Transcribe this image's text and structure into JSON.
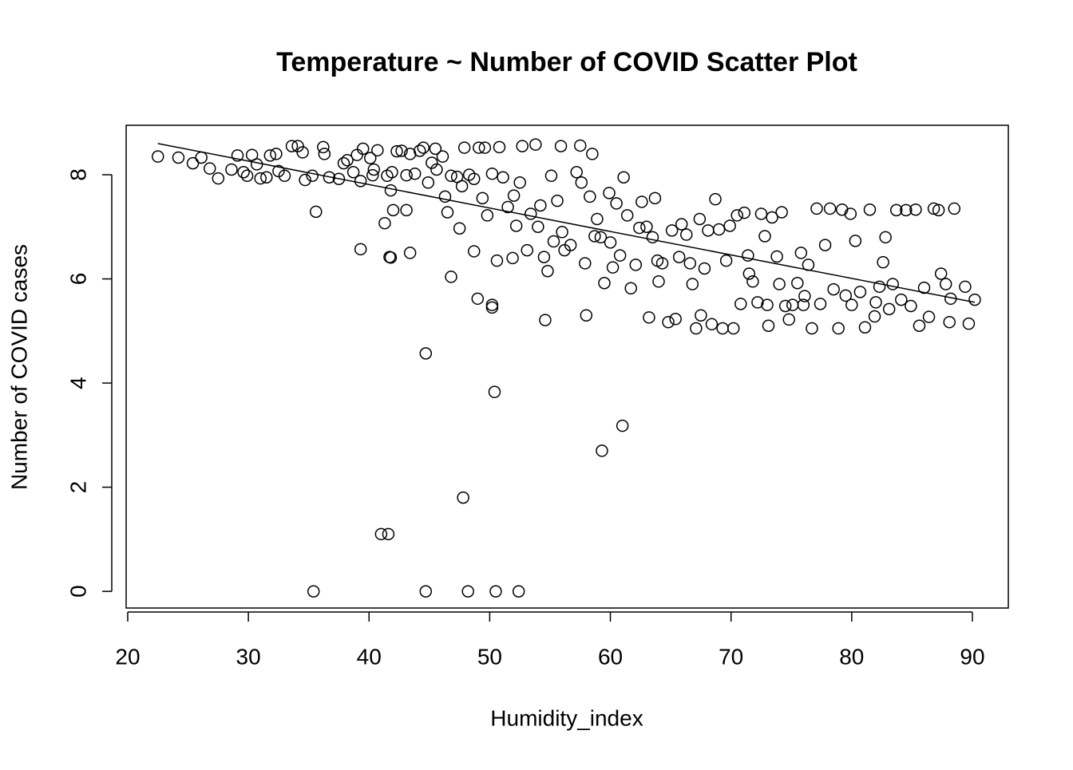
{
  "chart_data": {
    "type": "scatter",
    "title": "Temperature ~ Number of COVID Scatter Plot",
    "x_label": "Humidity_index",
    "y_label": "Number of COVID cases",
    "xlim": [
      19.87,
      92.98
    ],
    "ylim": [
      -0.32,
      8.95
    ],
    "xticks": [
      20,
      30,
      40,
      50,
      60,
      70,
      80,
      90
    ],
    "yticks": [
      0,
      2,
      4,
      6,
      8
    ],
    "color": "#000000",
    "trend_line": {
      "x": [
        22.5,
        90.2
      ],
      "y": [
        8.6,
        5.55
      ]
    },
    "x": [
      35.4,
      44.7,
      48.2,
      50.5,
      52.4,
      41,
      41.6,
      47.8,
      59.3,
      61,
      50.4,
      44.7,
      54.6,
      50.2,
      50.2,
      49,
      46.8,
      48.7,
      39.3,
      43.4,
      41.8,
      41.7,
      35.6,
      42,
      43.1,
      41.3,
      41.8,
      22.5,
      24.2,
      25.4,
      26.1,
      26.8,
      27.5,
      28.6,
      29.1,
      29.6,
      29.9,
      30.3,
      30.7,
      31,
      31.5,
      31.8,
      32.3,
      32.5,
      33,
      33.6,
      34.1,
      34.5,
      34.7,
      35.3,
      36.2,
      36.3,
      36.7,
      37.5,
      37.9,
      38.2,
      38.7,
      39,
      39.3,
      39.5,
      40.1,
      40.3,
      40.4,
      40.7,
      41.5,
      41.9,
      42.3,
      42.7,
      43.1,
      43.4,
      43.8,
      44.2,
      44.5,
      44.9,
      45.2,
      45.5,
      45.6,
      46.1,
      46.3,
      46.5,
      46.8,
      47.3,
      47.5,
      47.7,
      47.9,
      48.3,
      48.7,
      49.1,
      49.4,
      49.6,
      49.8,
      50.2,
      50.6,
      50.8,
      51.1,
      51.5,
      51.9,
      52.2,
      52.5,
      52.7,
      53.1,
      53.4,
      53.8,
      54.2,
      54.5,
      54.8,
      55.1,
      55.3,
      55.6,
      55.9,
      56.2,
      56.7,
      57.2,
      57.5,
      57.6,
      57.9,
      58,
      58.3,
      58.5,
      58.7,
      58.9,
      59.2,
      59.5,
      59.9,
      60.2,
      60.5,
      60.8,
      61.1,
      61.4,
      61.7,
      62.1,
      62.4,
      62.6,
      63,
      63.2,
      63.5,
      63.7,
      63.9,
      64.3,
      64.8,
      65.1,
      65.4,
      65.7,
      65.9,
      66.3,
      66.6,
      66.8,
      67.1,
      67.4,
      67.8,
      68.1,
      68.4,
      68.7,
      69,
      69.3,
      69.6,
      69.9,
      70.2,
      70.5,
      70.8,
      71.1,
      71.4,
      71.8,
      72.2,
      72.5,
      72.8,
      73.1,
      73.4,
      73.8,
      74.2,
      74.5,
      74.8,
      75.1,
      75.5,
      75.8,
      76.1,
      76.4,
      76.7,
      77.1,
      77.4,
      77.8,
      78.2,
      78.5,
      78.9,
      79.2,
      79.5,
      79.9,
      80.3,
      80.7,
      81.1,
      81.5,
      81.9,
      82.3,
      82.6,
      82.8,
      83.1,
      83.4,
      83.7,
      84.1,
      84.5,
      84.9,
      85.3,
      85.6,
      86,
      86.4,
      86.8,
      87.2,
      87.4,
      87.8,
      88.1,
      88.5,
      89.4,
      89.7,
      90.2,
      88.2,
      82,
      76,
      80,
      74,
      73,
      71.5,
      67.5,
      64,
      60,
      56,
      54,
      52
    ],
    "y": [
      0,
      0,
      0,
      0,
      0,
      1.1,
      1.1,
      1.8,
      2.7,
      3.18,
      3.83,
      4.57,
      5.21,
      5.45,
      5.5,
      5.62,
      6.04,
      6.53,
      6.57,
      6.5,
      6.41,
      6.42,
      7.29,
      7.32,
      7.32,
      7.07,
      7.7,
      8.35,
      8.33,
      8.22,
      8.33,
      8.12,
      7.93,
      8.1,
      8.37,
      8.05,
      7.98,
      8.38,
      8.2,
      7.93,
      7.95,
      8.37,
      8.4,
      8.07,
      7.98,
      8.55,
      8.55,
      8.43,
      7.9,
      7.98,
      8.53,
      8.4,
      7.95,
      7.92,
      8.22,
      8.28,
      8.05,
      8.38,
      7.88,
      8.5,
      8.32,
      7.99,
      8.1,
      8.47,
      7.98,
      8.05,
      8.45,
      8.46,
      7.99,
      8.4,
      8.02,
      8.46,
      8.52,
      7.85,
      8.23,
      8.5,
      8.1,
      8.35,
      7.58,
      7.28,
      7.98,
      7.96,
      6.97,
      7.78,
      8.52,
      8.0,
      7.92,
      8.52,
      7.55,
      8.52,
      7.22,
      8.02,
      6.35,
      8.53,
      7.95,
      7.38,
      6.4,
      7.02,
      7.85,
      8.55,
      6.55,
      7.25,
      8.58,
      7.41,
      6.42,
      6.15,
      7.98,
      6.72,
      7.5,
      8.55,
      6.55,
      6.65,
      8.05,
      8.56,
      7.85,
      6.3,
      5.3,
      7.58,
      8.4,
      6.82,
      7.15,
      6.8,
      5.92,
      7.65,
      6.22,
      7.45,
      6.45,
      7.95,
      7.22,
      5.82,
      6.27,
      6.98,
      7.48,
      7.0,
      5.26,
      6.8,
      7.55,
      6.35,
      6.3,
      5.17,
      6.93,
      5.23,
      6.42,
      7.05,
      6.85,
      6.3,
      5.9,
      5.05,
      7.15,
      6.2,
      6.93,
      5.13,
      7.53,
      6.95,
      5.05,
      6.35,
      7.02,
      5.05,
      7.22,
      5.52,
      7.27,
      6.45,
      5.95,
      5.55,
      7.25,
      6.82,
      5.1,
      7.18,
      6.43,
      7.28,
      5.48,
      5.22,
      5.5,
      5.92,
      6.5,
      5.67,
      6.27,
      5.05,
      7.35,
      5.52,
      6.65,
      7.35,
      5.8,
      5.05,
      7.33,
      5.68,
      7.25,
      6.73,
      5.75,
      5.07,
      7.33,
      5.28,
      5.85,
      6.32,
      6.8,
      5.42,
      5.9,
      7.32,
      5.6,
      7.32,
      5.48,
      7.33,
      5.1,
      5.83,
      5.27,
      7.35,
      7.32,
      6.1,
      5.9,
      5.17,
      7.35,
      5.85,
      5.14,
      5.6,
      5.62,
      5.55,
      5.5,
      5.5,
      5.9,
      5.5,
      6.1,
      5.3,
      5.95,
      6.7,
      6.9,
      7.0,
      7.6
    ]
  }
}
